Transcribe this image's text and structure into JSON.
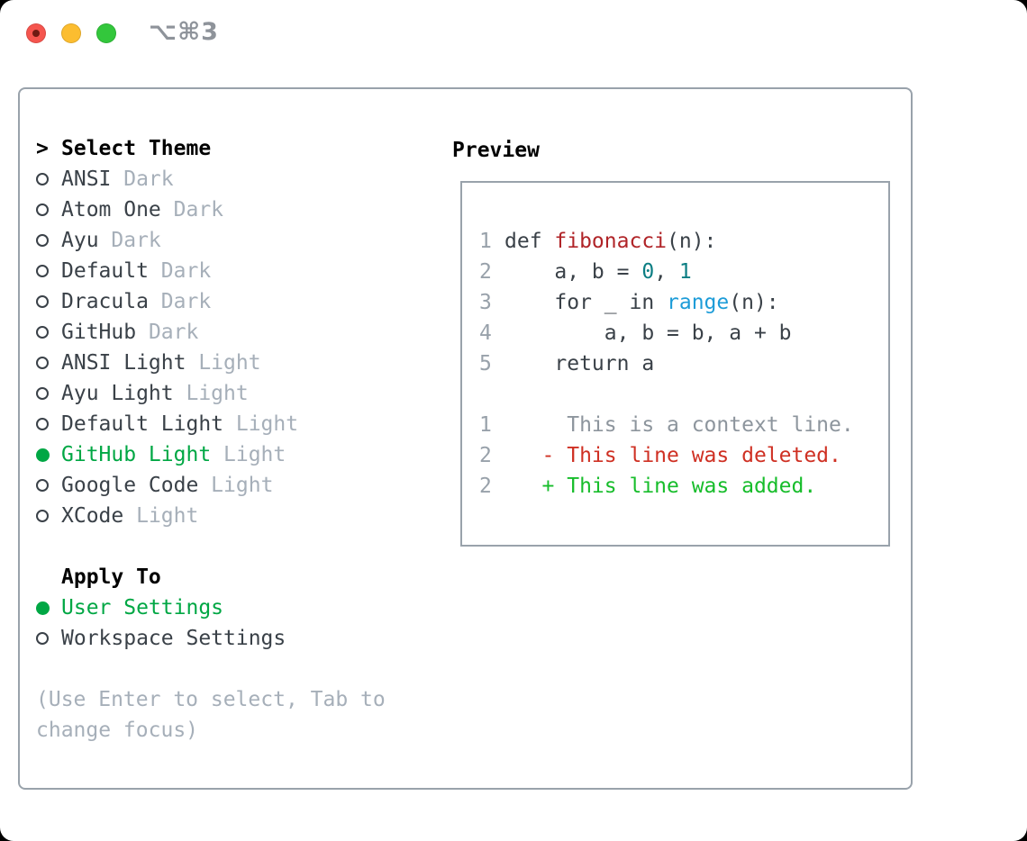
{
  "window": {
    "title": "⌥⌘3"
  },
  "colors": {
    "selection_green": "#00a744",
    "diff_added_green": "#17bd2b",
    "diff_deleted_red": "#cf3023",
    "function_red": "#b02428",
    "number_teal": "#0c7e83",
    "builtin_blue": "#1d9cd8",
    "muted_gray": "#a6afb9",
    "border_gray": "#99a2ab",
    "traffic_red": "#f5554e",
    "traffic_yellow": "#fcbd30",
    "traffic_green": "#33c73c"
  },
  "theme_panel": {
    "prompt": ">",
    "title": "Select Theme",
    "themes": [
      {
        "name": "ANSI",
        "variant": "Dark",
        "selected": false
      },
      {
        "name": "Atom One",
        "variant": "Dark",
        "selected": false
      },
      {
        "name": "Ayu",
        "variant": "Dark",
        "selected": false
      },
      {
        "name": "Default",
        "variant": "Dark",
        "selected": false
      },
      {
        "name": "Dracula",
        "variant": "Dark",
        "selected": false
      },
      {
        "name": "GitHub",
        "variant": "Dark",
        "selected": false
      },
      {
        "name": "ANSI Light",
        "variant": "Light",
        "selected": false
      },
      {
        "name": "Ayu Light",
        "variant": "Light",
        "selected": false
      },
      {
        "name": "Default Light",
        "variant": "Light",
        "selected": false
      },
      {
        "name": "GitHub Light",
        "variant": "Light",
        "selected": true
      },
      {
        "name": "Google Code",
        "variant": "Light",
        "selected": false
      },
      {
        "name": "XCode",
        "variant": "Light",
        "selected": false
      }
    ],
    "apply_to": {
      "title": "Apply To",
      "options": [
        {
          "name": "User Settings",
          "selected": true
        },
        {
          "name": "Workspace Settings",
          "selected": false
        }
      ]
    },
    "hint_lines": [
      "(Use Enter to select, Tab to",
      "change focus)"
    ]
  },
  "preview": {
    "title": "Preview",
    "code_lines": [
      {
        "num": "1",
        "tokens": [
          [
            "def ",
            "fg"
          ],
          [
            "fibonacci",
            "func"
          ],
          [
            "(n):",
            "fg"
          ]
        ]
      },
      {
        "num": "2",
        "tokens": [
          [
            "    a, b = ",
            "fg"
          ],
          [
            "0",
            "num"
          ],
          [
            ", ",
            "fg"
          ],
          [
            "1",
            "num"
          ]
        ]
      },
      {
        "num": "3",
        "tokens": [
          [
            "    for _ in ",
            "fg"
          ],
          [
            "range",
            "builtin"
          ],
          [
            "(n):",
            "fg"
          ]
        ]
      },
      {
        "num": "4",
        "tokens": [
          [
            "        a, b = b, a + b",
            "fg"
          ]
        ]
      },
      {
        "num": "5",
        "tokens": [
          [
            "    return a",
            "fg"
          ]
        ]
      }
    ],
    "diff_lines": [
      {
        "num": "1",
        "text": "     This is a context line.",
        "kind": "context"
      },
      {
        "num": "2",
        "text": "   - This line was deleted.",
        "kind": "deleted"
      },
      {
        "num": "2",
        "text": "   + This line was added.",
        "kind": "added"
      }
    ]
  }
}
